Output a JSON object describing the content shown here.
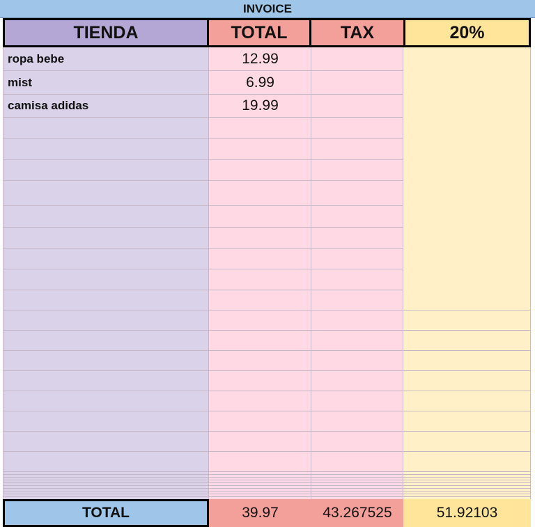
{
  "title": "INVOICE",
  "headers": [
    "TIENDA",
    "TOTAL",
    "TAX",
    "20%"
  ],
  "rows": [
    {
      "tienda": "ropa bebe",
      "total": "12.99"
    },
    {
      "tienda": "mist",
      "total": "6.99"
    },
    {
      "tienda": "camisa adidas",
      "total": "19.99"
    }
  ],
  "totals": {
    "label": "TOTAL",
    "total": "39.97",
    "tax": "43.267525",
    "twenty_percent": "51.92103"
  },
  "colors": {
    "title_bg": "#9fc5e8",
    "tienda_header": "#b4a7d6",
    "tienda_body": "#d9d2e9",
    "total_header": "#f4a09a",
    "tax_header": "#f4a09a",
    "pink_body": "#ffd9e3",
    "percent_header": "#ffe599",
    "percent_body": "#fff0c8",
    "total_label_bg": "#9fc5e8"
  }
}
